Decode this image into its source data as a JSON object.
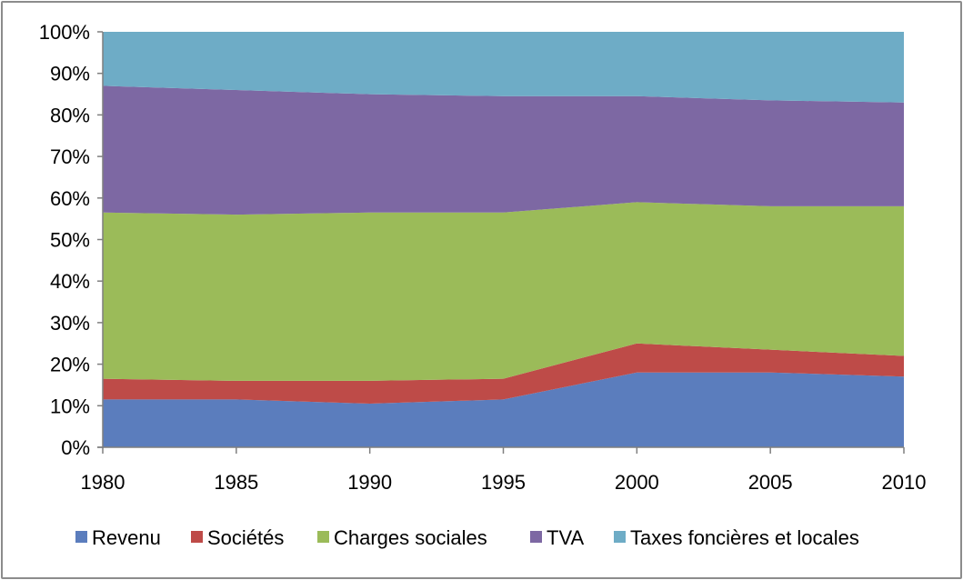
{
  "chart_data": {
    "type": "area",
    "stacked": true,
    "percent": true,
    "x": [
      "1980",
      "1985",
      "1990",
      "1995",
      "2000",
      "2005",
      "2010"
    ],
    "y_tick_labels": [
      "0%",
      "10%",
      "20%",
      "30%",
      "40%",
      "50%",
      "60%",
      "70%",
      "80%",
      "90%",
      "100%"
    ],
    "ylim": [
      0,
      100
    ],
    "legend_position": "bottom",
    "grid": false,
    "series": [
      {
        "name": "Revenu",
        "color": "#5b7dbd",
        "values": [
          11.5,
          11.5,
          10.5,
          11.5,
          18,
          18,
          17
        ]
      },
      {
        "name": "Sociétés",
        "color": "#be4b48",
        "values": [
          5,
          4.5,
          5.5,
          5,
          7,
          5.5,
          5
        ]
      },
      {
        "name": "Charges sociales",
        "color": "#9bbb59",
        "values": [
          40,
          40,
          40.5,
          40,
          34,
          34.5,
          36
        ]
      },
      {
        "name": "TVA",
        "color": "#7d68a3",
        "values": [
          30.5,
          30,
          28.5,
          28,
          25.5,
          25.5,
          25
        ]
      },
      {
        "name": "Taxes foncières et locales",
        "color": "#6eacc6",
        "values": [
          13,
          14,
          15,
          15.5,
          15.5,
          16.5,
          17
        ]
      }
    ]
  }
}
